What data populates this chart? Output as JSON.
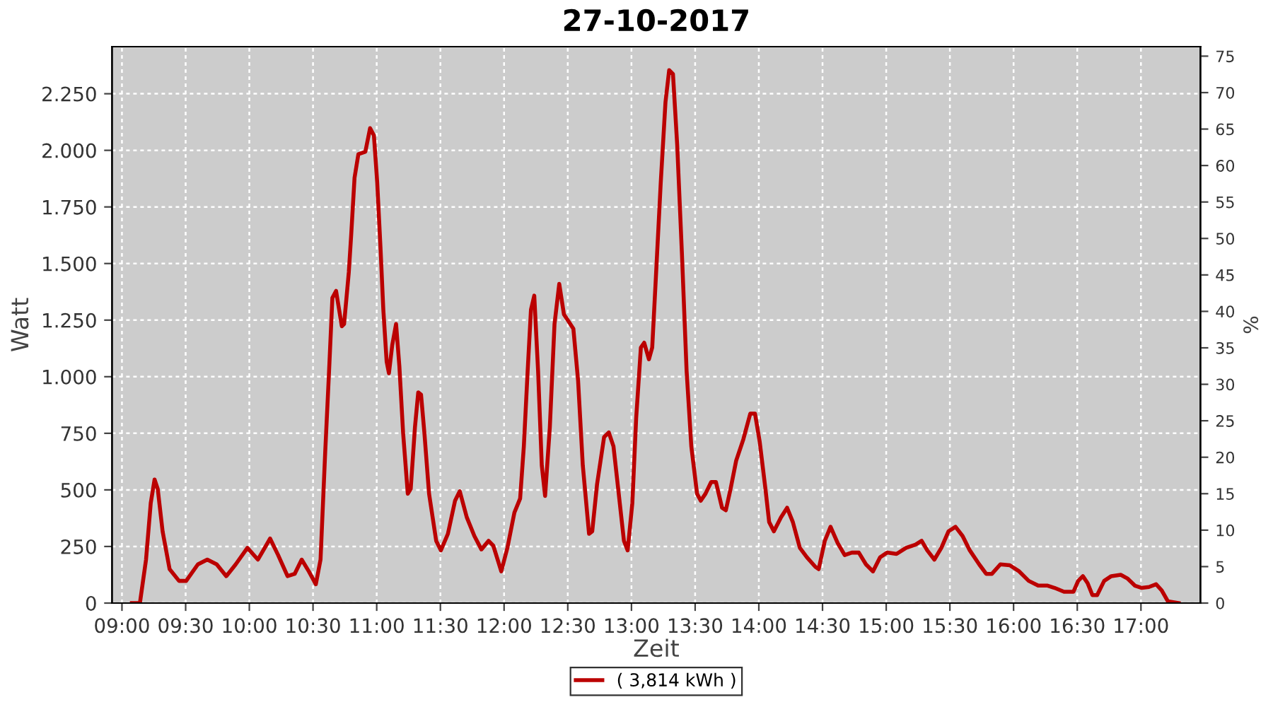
{
  "chart_data": {
    "type": "line",
    "title": "27-10-2017",
    "xlabel": "Zeit",
    "ylabel": "Watt",
    "y2label": "%",
    "xlim": [
      8.922,
      17.467
    ],
    "xticks": [
      {
        "value": 9,
        "label": "09:00"
      },
      {
        "value": 9.5,
        "label": "09:30"
      },
      {
        "value": 10,
        "label": "10:00"
      },
      {
        "value": 10.5,
        "label": "10:30"
      },
      {
        "value": 11,
        "label": "11:00"
      },
      {
        "value": 11.5,
        "label": "11:30"
      },
      {
        "value": 12,
        "label": "12:00"
      },
      {
        "value": 12.5,
        "label": "12:30"
      },
      {
        "value": 13,
        "label": "13:00"
      },
      {
        "value": 13.5,
        "label": "13:30"
      },
      {
        "value": 14,
        "label": "14:00"
      },
      {
        "value": 14.5,
        "label": "14:30"
      },
      {
        "value": 15,
        "label": "15:00"
      },
      {
        "value": 15.5,
        "label": "15:30"
      },
      {
        "value": 16,
        "label": "16:00"
      },
      {
        "value": 16.5,
        "label": "16:30"
      },
      {
        "value": 17,
        "label": "17:00"
      }
    ],
    "ylim": [
      0,
      2458
    ],
    "yticks": [
      0,
      250,
      500,
      750,
      {
        "value": 1000,
        "label": "1.000"
      },
      {
        "value": 1250,
        "label": "1.250"
      },
      {
        "value": 1500,
        "label": "1.500"
      },
      {
        "value": 1750,
        "label": "1.750"
      },
      {
        "value": 2000,
        "label": "2.000"
      },
      {
        "value": 2250,
        "label": "2.250"
      }
    ],
    "y2lim": [
      0,
      76.3
    ],
    "y2ticks": [
      0,
      5,
      10,
      15,
      20,
      25,
      30,
      35,
      40,
      45,
      50,
      55,
      60,
      65,
      70,
      75
    ],
    "grid": true,
    "legend": "bottom",
    "line_style": "solid",
    "marker": "none",
    "series": [
      {
        "name": "( 3,814 kWh )",
        "color": "#bb0000",
        "x": [
          9.078,
          9.141,
          9.189,
          9.226,
          9.256,
          9.281,
          9.319,
          9.374,
          9.448,
          9.504,
          9.596,
          9.67,
          9.744,
          9.819,
          9.893,
          9.985,
          10.067,
          10.163,
          10.226,
          10.3,
          10.356,
          10.411,
          10.467,
          10.522,
          10.559,
          10.596,
          10.626,
          10.652,
          10.681,
          10.726,
          10.744,
          10.781,
          10.8,
          10.826,
          10.856,
          10.911,
          10.948,
          10.978,
          11.004,
          11.03,
          11.052,
          11.078,
          11.096,
          11.122,
          11.152,
          11.178,
          11.207,
          11.244,
          11.267,
          11.3,
          11.326,
          11.348,
          11.374,
          11.411,
          11.467,
          11.504,
          11.559,
          11.615,
          11.652,
          11.707,
          11.767,
          11.822,
          11.878,
          11.915,
          11.978,
          12.026,
          12.081,
          12.126,
          12.155,
          12.185,
          12.211,
          12.237,
          12.267,
          12.296,
          12.322,
          12.359,
          12.396,
          12.433,
          12.47,
          12.507,
          12.544,
          12.581,
          12.618,
          12.667,
          12.692,
          12.73,
          12.785,
          12.822,
          12.859,
          12.896,
          12.941,
          12.97,
          13.007,
          13.037,
          13.074,
          13.1,
          13.137,
          13.163,
          13.192,
          13.23,
          13.267,
          13.296,
          13.326,
          13.359,
          13.396,
          13.433,
          13.47,
          13.515,
          13.544,
          13.581,
          13.626,
          13.663,
          13.711,
          13.741,
          13.778,
          13.822,
          13.878,
          13.933,
          13.97,
          14.007,
          14.052,
          14.081,
          14.118,
          14.174,
          14.222,
          14.267,
          14.322,
          14.378,
          14.444,
          14.47,
          14.518,
          14.563,
          14.619,
          14.674,
          14.73,
          14.785,
          14.841,
          14.896,
          14.952,
          15.007,
          15.081,
          15.156,
          15.23,
          15.278,
          15.322,
          15.378,
          15.433,
          15.489,
          15.544,
          15.6,
          15.656,
          15.73,
          15.785,
          15.83,
          15.896,
          15.97,
          16.044,
          16.119,
          16.193,
          16.267,
          16.322,
          16.396,
          16.47,
          16.507,
          16.544,
          16.581,
          16.619,
          16.656,
          16.711,
          16.767,
          16.841,
          16.896,
          16.952,
          17.007,
          17.063,
          17.119,
          17.163,
          17.211,
          17.296
        ],
        "values": [
          0,
          0,
          192,
          442,
          546,
          504,
          317,
          150,
          98,
          98,
          171,
          192,
          171,
          119,
          171,
          244,
          192,
          285,
          212,
          119,
          129,
          192,
          140,
          83,
          192,
          671,
          1025,
          1348,
          1379,
          1223,
          1233,
          1462,
          1629,
          1879,
          1983,
          1994,
          2098,
          2066,
          1858,
          1567,
          1296,
          1067,
          1015,
          1140,
          1233,
          1046,
          754,
          483,
          504,
          775,
          931,
          921,
          754,
          483,
          275,
          233,
          306,
          452,
          494,
          379,
          296,
          237,
          275,
          254,
          140,
          244,
          400,
          462,
          692,
          1025,
          1296,
          1358,
          1025,
          608,
          473,
          775,
          1233,
          1410,
          1275,
          1244,
          1212,
          983,
          608,
          306,
          317,
          525,
          733,
          754,
          692,
          504,
          275,
          233,
          442,
          817,
          1129,
          1150,
          1077,
          1129,
          1442,
          1858,
          2212,
          2354,
          2337,
          2025,
          1546,
          1025,
          692,
          483,
          452,
          483,
          535,
          535,
          421,
          410,
          504,
          629,
          723,
          837,
          837,
          712,
          504,
          358,
          317,
          379,
          421,
          358,
          244,
          202,
          160,
          150,
          275,
          337,
          265,
          212,
          223,
          223,
          171,
          140,
          202,
          223,
          217,
          244,
          258,
          275,
          233,
          192,
          244,
          317,
          337,
          296,
          233,
          171,
          129,
          129,
          171,
          167,
          140,
          98,
          77,
          77,
          67,
          50,
          50,
          98,
          119,
          88,
          35,
          35,
          98,
          119,
          125,
          108,
          77,
          67,
          71,
          83,
          56,
          8,
          0
        ]
      }
    ]
  }
}
